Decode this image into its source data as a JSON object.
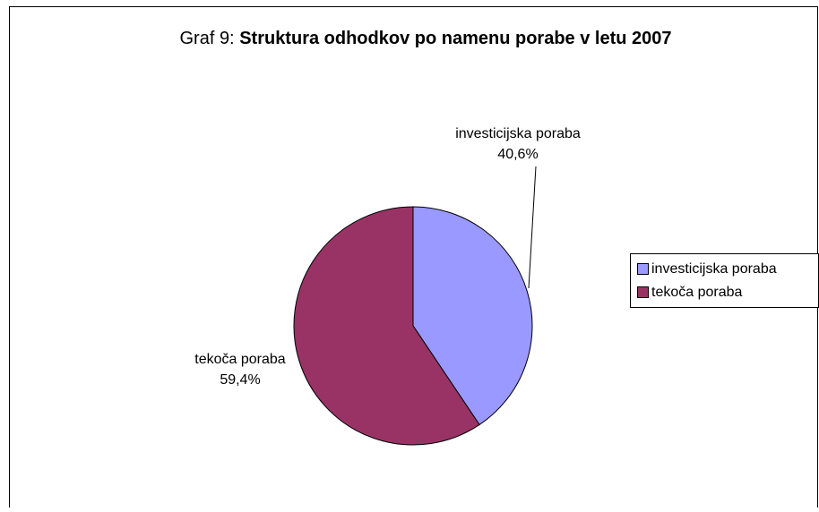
{
  "chart_data": {
    "type": "pie",
    "title_prefix": "Graf 9:",
    "title": "Struktura odhodkov po namenu porabe v letu 2007",
    "categories": [
      "investicijska poraba",
      "tekoča poraba"
    ],
    "values": [
      40.6,
      59.4
    ],
    "value_labels": [
      "40,6%",
      "59,4%"
    ],
    "colors": [
      "#9999ff",
      "#993366"
    ],
    "legend": "right"
  }
}
